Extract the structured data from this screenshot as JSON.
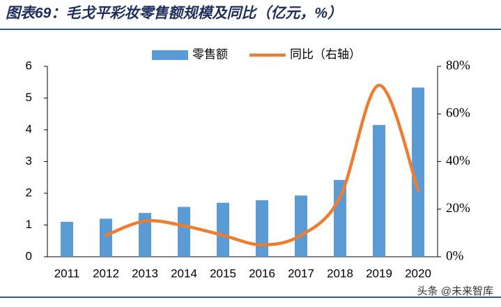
{
  "chart_data": {
    "type": "bar",
    "title": "图表69：毛戈平彩妆零售额规模及同比（亿元，%）",
    "categories": [
      "2011",
      "2012",
      "2013",
      "2014",
      "2015",
      "2016",
      "2017",
      "2018",
      "2019",
      "2020"
    ],
    "series": [
      {
        "name": "零售额",
        "color": "#5b9bd5",
        "values": [
          1.1,
          1.2,
          1.38,
          1.57,
          1.7,
          1.78,
          1.93,
          2.42,
          4.15,
          5.33
        ]
      },
      {
        "name": "同比（右轴）",
        "color": "#ed7d31",
        "axis": "y2",
        "values": [
          null,
          9,
          15,
          13,
          9,
          5,
          9,
          25,
          72,
          28
        ]
      }
    ],
    "ylim": [
      0,
      6
    ],
    "yticks": [
      0,
      1,
      2,
      3,
      4,
      5,
      6
    ],
    "y2lim": [
      0,
      80
    ],
    "y2ticks": [
      {
        "value": 0,
        "label": "0%"
      },
      {
        "value": 20,
        "label": "20%"
      },
      {
        "value": 40,
        "label": "40%"
      },
      {
        "value": 60,
        "label": "60%"
      },
      {
        "value": 80,
        "label": "80%"
      }
    ],
    "watermark": "头条 @未来智库"
  }
}
